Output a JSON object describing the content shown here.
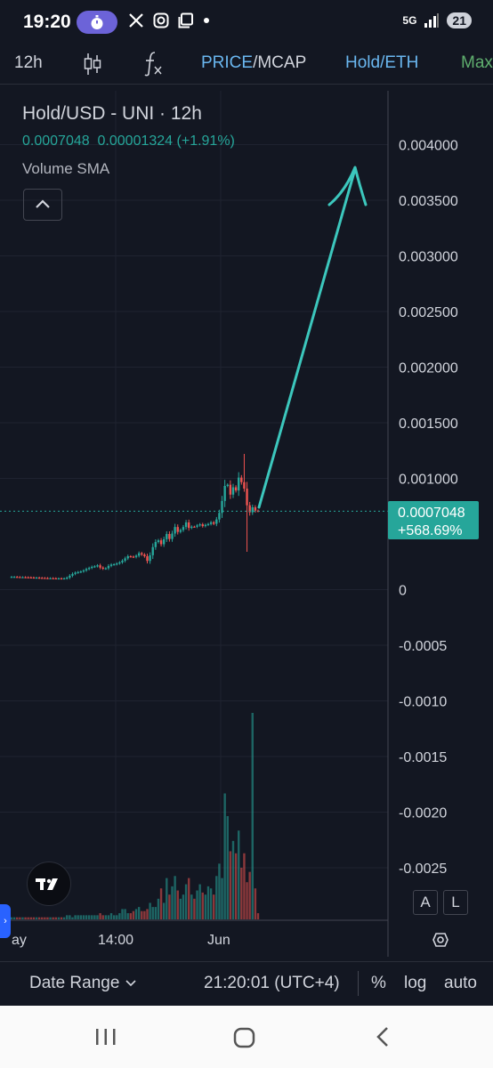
{
  "status_bar": {
    "time": "19:20",
    "notification_icons": [
      "stopwatch-icon",
      "x-app-icon",
      "instagram-icon",
      "copy-icon",
      "dot-icon"
    ],
    "network": "5G",
    "battery": "21"
  },
  "toolbar": {
    "interval": "12h",
    "price_label": "PRICE",
    "separator": "/",
    "mcap_label": "MCAP",
    "pair_toggle": "Hold/ETH",
    "max_label": "Max"
  },
  "legend": {
    "title": "Hold/USD - UNI · 12h",
    "last_price": "0.0007048",
    "change": "0.00001324",
    "change_pct": "(+1.91%)",
    "volume_indicator": "Volume SMA"
  },
  "chart_data": {
    "type": "candlestick",
    "title": "Hold/USD - UNI · 12h",
    "y_ticks": [
      "0.004000",
      "0.003500",
      "0.003000",
      "0.002500",
      "0.002000",
      "0.001500",
      "0.001000",
      "0",
      "-0.0005",
      "-0.0010",
      "-0.0015",
      "-0.0020",
      "-0.0025"
    ],
    "y_range": [
      -0.0029,
      0.0044
    ],
    "x_ticks": [
      "ay",
      "14:00",
      "Jun"
    ],
    "last_price_label": "0.0007048",
    "last_change_label": "+568.69%",
    "price_line_color": "#26a69a",
    "up_color": "#26a69a",
    "down_color": "#ef5350",
    "candles_close": [
      0.000115,
      0.000115,
      0.000113,
      0.000112,
      0.000112,
      0.000111,
      0.00011,
      0.000109,
      0.000108,
      0.000108,
      0.000106,
      0.000105,
      0.000104,
      0.000103,
      0.000103,
      0.000102,
      0.000101,
      0.000101,
      0.0001,
      0.000101,
      0.000108,
      0.000125,
      0.000141,
      0.000152,
      0.000158,
      0.000163,
      0.000172,
      0.000185,
      0.000195,
      0.000205,
      0.00021,
      0.000218,
      0.000198,
      0.000188,
      0.000192,
      0.000213,
      0.000225,
      0.000228,
      0.000235,
      0.000245,
      0.00026,
      0.000281,
      0.0003,
      0.000297,
      0.000293,
      0.000305,
      0.000327,
      0.000315,
      0.0003,
      0.000258,
      0.000309,
      0.000382,
      0.000428,
      0.000443,
      0.000408,
      0.000453,
      0.0005,
      0.000455,
      0.000504,
      0.000563,
      0.000519,
      0.000536,
      0.000563,
      0.000604,
      0.000555,
      0.000566,
      0.000565,
      0.000577,
      0.000587,
      0.000571,
      0.000582,
      0.00059,
      0.000605,
      0.000592,
      0.000631,
      0.00069,
      0.000797,
      0.000932,
      0.000943,
      0.000854,
      0.00092,
      0.000891,
      0.001007,
      0.000966,
      0.000908,
      0.000758,
      0.000695,
      0.00074,
      0.00071,
      0.000705
    ],
    "volume_relative": [
      0.01,
      0.01,
      0.01,
      0.01,
      0.01,
      0.01,
      0.01,
      0.01,
      0.01,
      0.01,
      0.01,
      0.01,
      0.01,
      0.01,
      0.01,
      0.01,
      0.01,
      0.01,
      0.01,
      0.01,
      0.02,
      0.02,
      0.01,
      0.02,
      0.02,
      0.02,
      0.02,
      0.02,
      0.02,
      0.02,
      0.02,
      0.02,
      0.03,
      0.02,
      0.02,
      0.02,
      0.03,
      0.02,
      0.02,
      0.03,
      0.05,
      0.05,
      0.03,
      0.03,
      0.04,
      0.05,
      0.06,
      0.04,
      0.04,
      0.05,
      0.08,
      0.06,
      0.06,
      0.1,
      0.15,
      0.08,
      0.2,
      0.12,
      0.16,
      0.21,
      0.14,
      0.1,
      0.12,
      0.17,
      0.2,
      0.12,
      0.1,
      0.14,
      0.17,
      0.13,
      0.12,
      0.16,
      0.15,
      0.12,
      0.21,
      0.27,
      0.2,
      0.61,
      0.5,
      0.33,
      0.38,
      0.32,
      0.43,
      0.25,
      0.32,
      0.18,
      0.23,
      1.0,
      0.15,
      0.03
    ]
  },
  "bottom_bar": {
    "date_range": "Date Range",
    "time": "21:20:01 (UTC+4)",
    "percent": "%",
    "log": "log",
    "auto": "auto"
  },
  "scale_buttons": {
    "a": "A",
    "l": "L"
  }
}
